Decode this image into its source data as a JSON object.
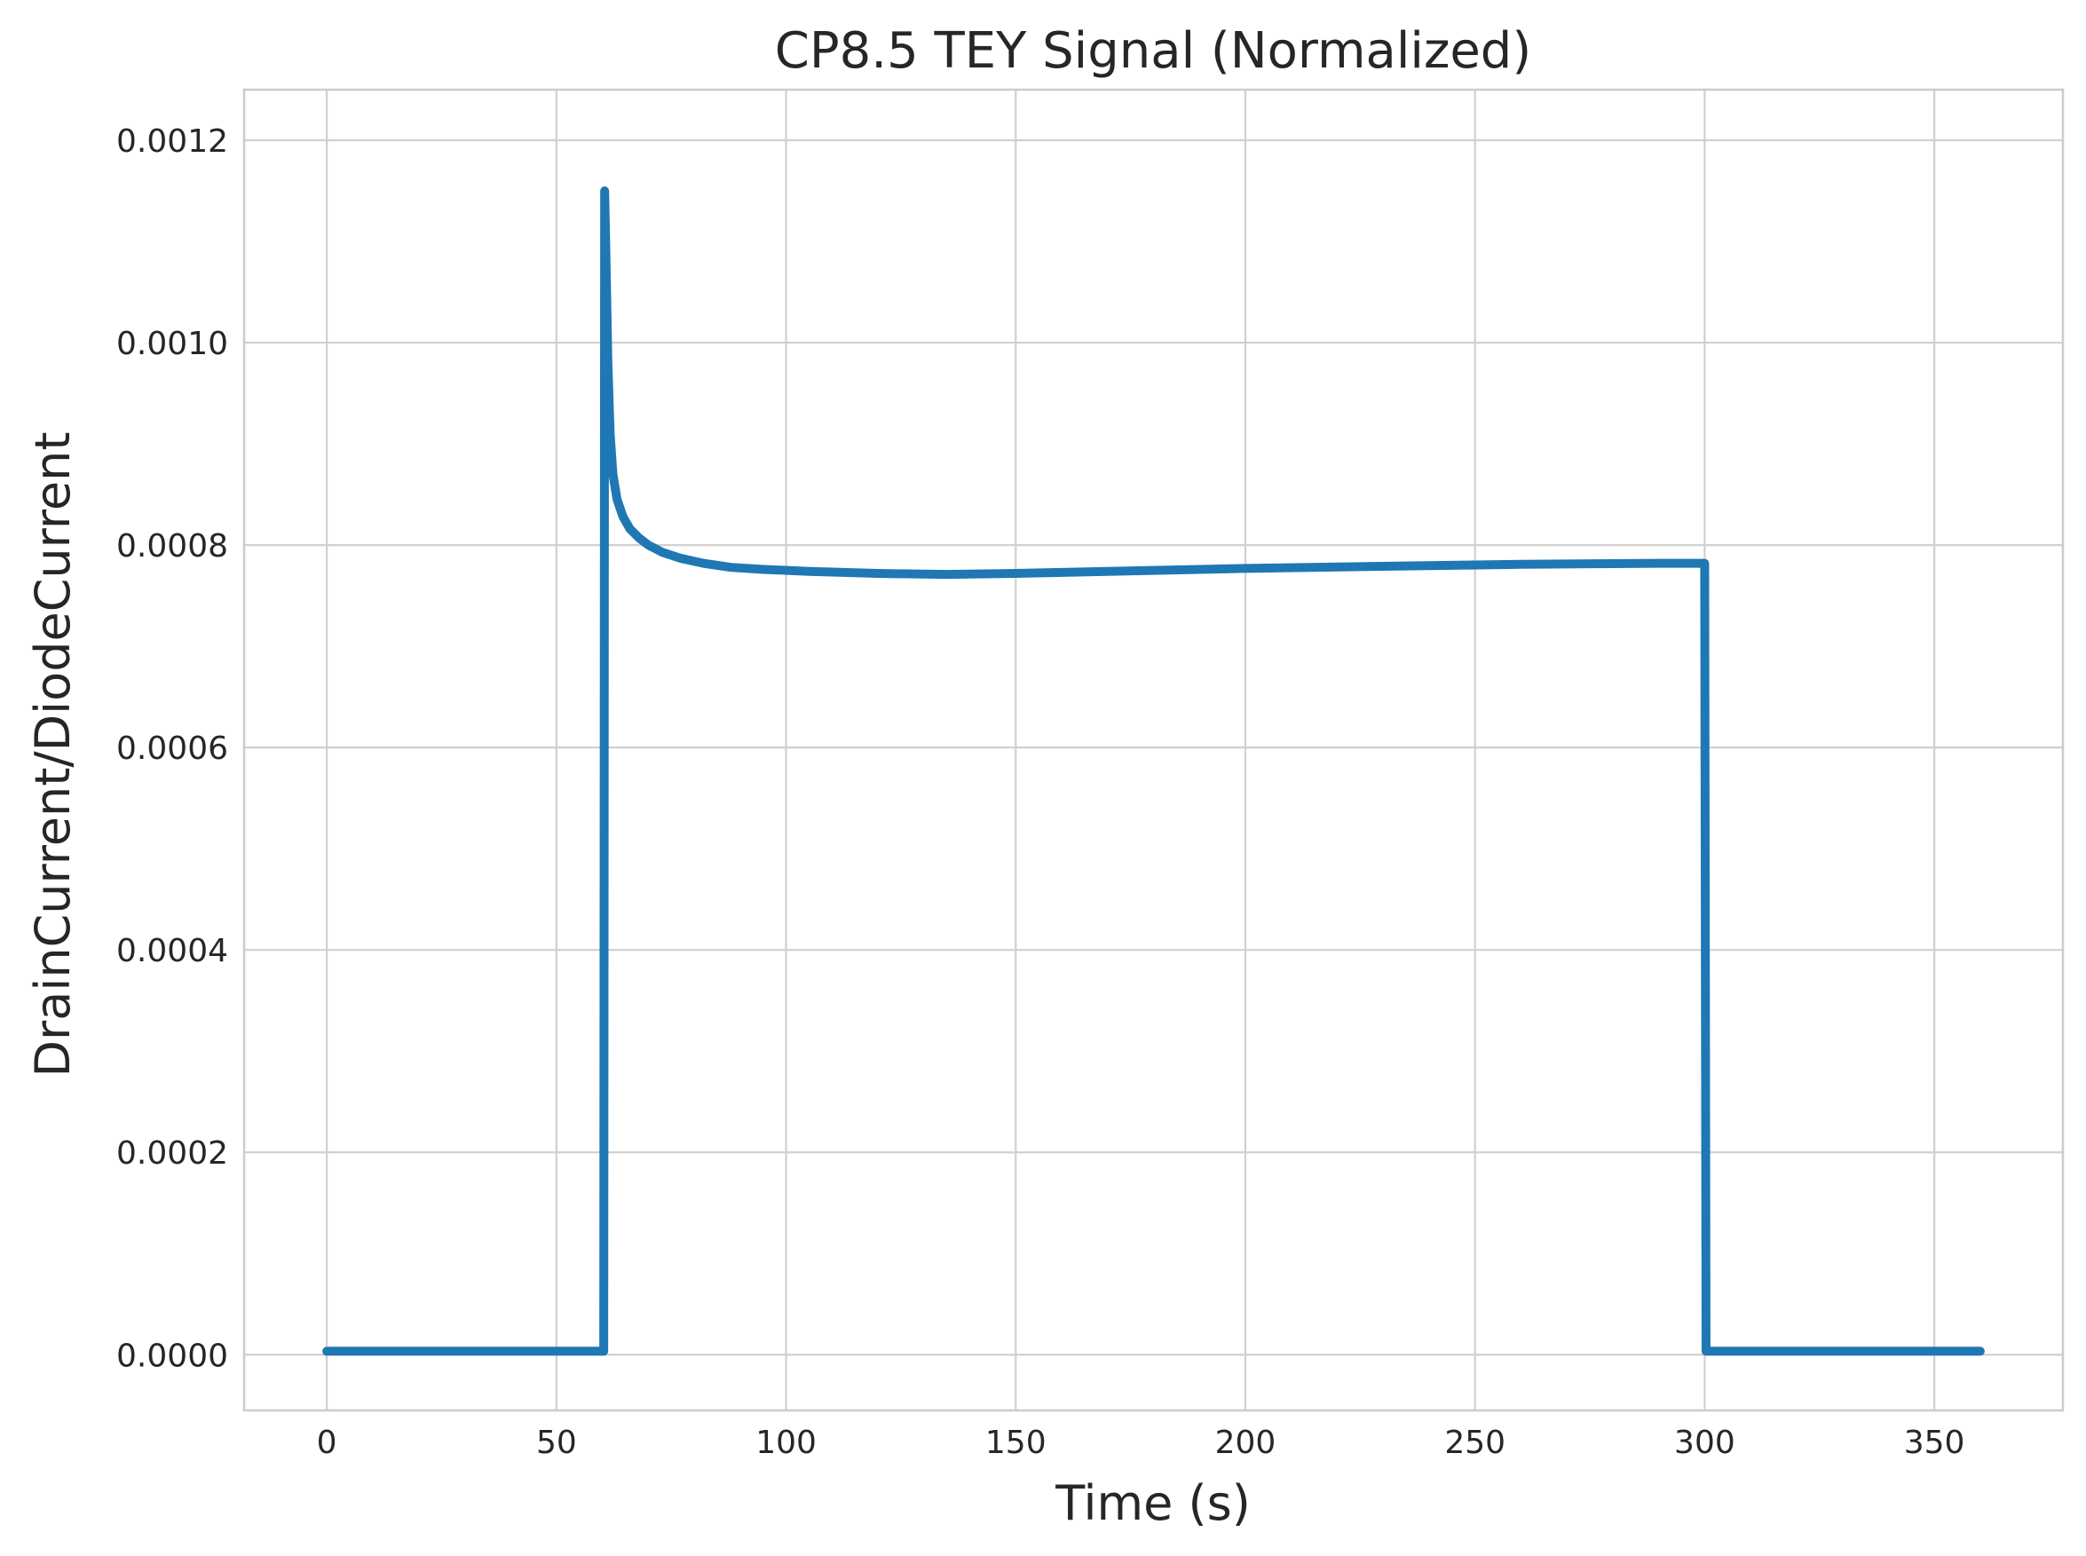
{
  "chart_data": {
    "type": "line",
    "title": "CP8.5 TEY Signal (Normalized)",
    "xlabel": "Time (s)",
    "ylabel": "DrainCurrent/DiodeCurrent",
    "xlim": [
      -18,
      378
    ],
    "ylim": [
      -5.5e-05,
      0.00125
    ],
    "xticks": [
      0,
      50,
      100,
      150,
      200,
      250,
      300,
      350
    ],
    "xtick_labels": [
      "0",
      "50",
      "100",
      "150",
      "200",
      "250",
      "300",
      "350"
    ],
    "yticks": [
      0.0,
      0.0002,
      0.0004,
      0.0006,
      0.0008,
      0.001,
      0.0012
    ],
    "ytick_labels": [
      "0.0000",
      "0.0002",
      "0.0004",
      "0.0006",
      "0.0008",
      "0.0010",
      "0.0012"
    ],
    "grid": true,
    "series_color": "#1f77b4",
    "series": [
      {
        "x": [
          0,
          60.3,
          60.5,
          60.8,
          61.2,
          61.7,
          62.3,
          63.2,
          64.5,
          66,
          68,
          70,
          73,
          77,
          82,
          88,
          95,
          105,
          120,
          135,
          150,
          170,
          200,
          230,
          260,
          290,
          300,
          300.3,
          360
        ],
        "y": [
          3.5e-06,
          3.5e-06,
          0.00115,
          0.00108,
          0.00098,
          0.00091,
          0.00087,
          0.000845,
          0.000828,
          0.000816,
          0.000807,
          0.0008,
          0.000793,
          0.000787,
          0.000782,
          0.000778,
          0.000776,
          0.000774,
          0.000772,
          0.000771,
          0.000772,
          0.000774,
          0.000777,
          0.000779,
          0.000781,
          0.000782,
          0.000782,
          3.5e-06,
          3.5e-06
        ]
      }
    ]
  }
}
